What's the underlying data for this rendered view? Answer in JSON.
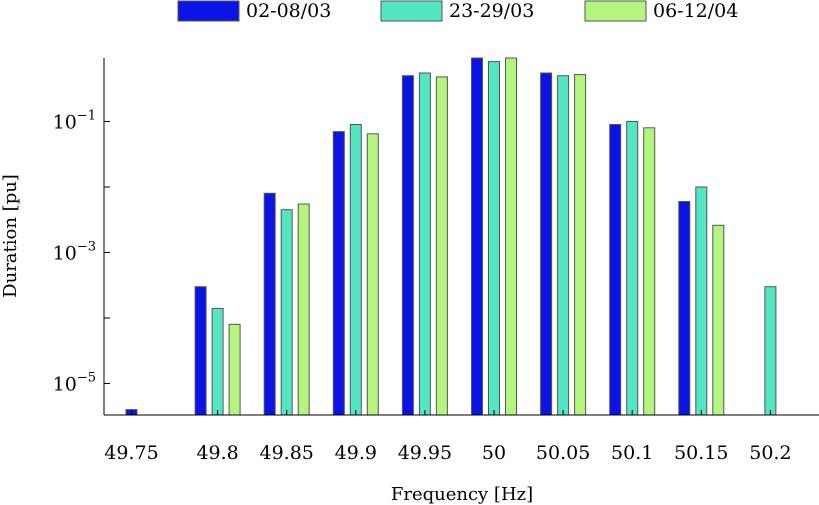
{
  "chart_data": {
    "type": "bar",
    "title": "",
    "xlabel": "Frequency [Hz]",
    "ylabel": "Duration [pu]",
    "y_scale": "log",
    "ylim": [
      3e-06,
      1
    ],
    "grid": false,
    "legend_position": "top",
    "categories": [
      "49.75",
      "49.8",
      "49.85",
      "49.9",
      "49.95",
      "50",
      "50.05",
      "50.1",
      "50.15",
      "50.2"
    ],
    "y_ticks": [
      {
        "base": "10",
        "exp": "−5",
        "value": 1e-05
      },
      {
        "base": "10",
        "exp": "−3",
        "value": 0.001
      },
      {
        "base": "10",
        "exp": "−1",
        "value": 0.1
      }
    ],
    "series": [
      {
        "name": "02-08/03",
        "color": "#0a14e6",
        "values": [
          4e-06,
          0.0003,
          0.008,
          0.07,
          0.5,
          0.98,
          0.55,
          0.09,
          0.006,
          null
        ]
      },
      {
        "name": "23-29/03",
        "color": "#52e6c3",
        "values": [
          null,
          0.00014,
          0.0045,
          0.09,
          0.55,
          0.82,
          0.5,
          0.1,
          0.01,
          0.0003
        ]
      },
      {
        "name": "06-12/04",
        "color": "#b4f57d",
        "values": [
          null,
          8e-05,
          0.0055,
          0.065,
          0.48,
          0.98,
          0.52,
          0.08,
          0.0026,
          null
        ]
      }
    ]
  }
}
